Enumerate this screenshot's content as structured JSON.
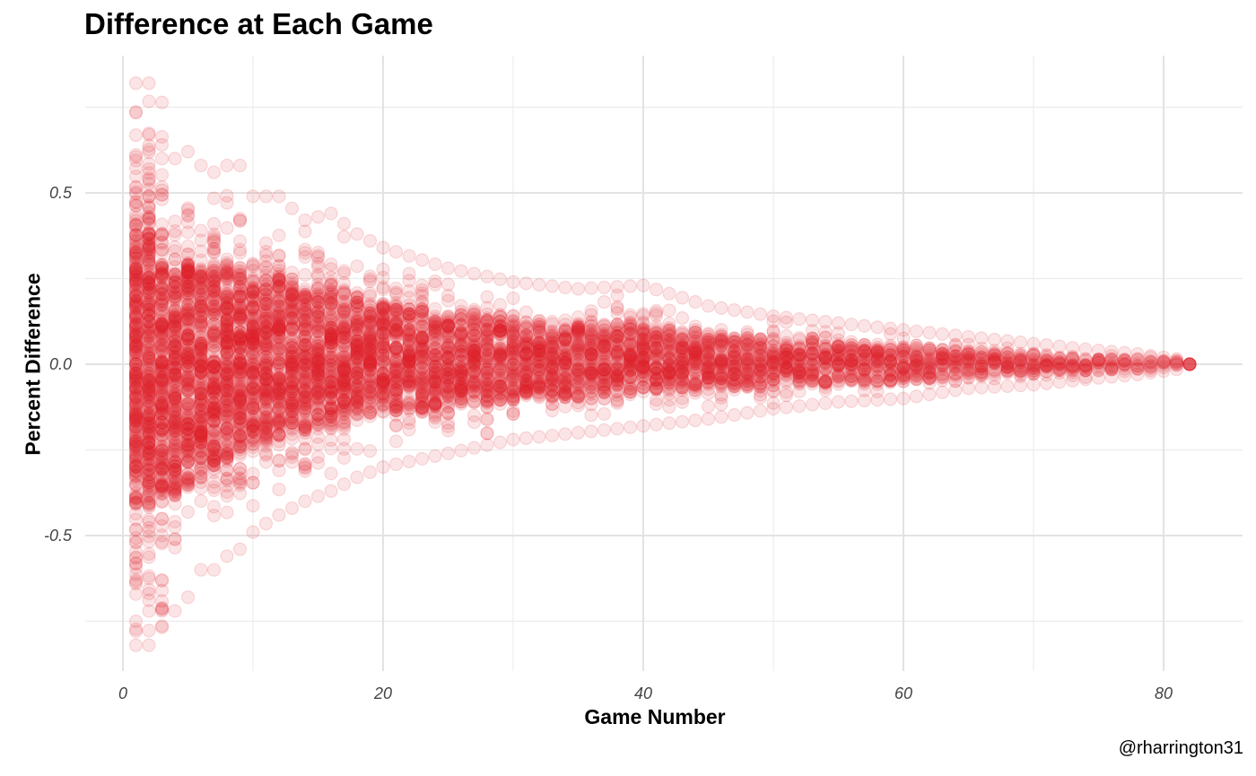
{
  "title": "Difference at Each Game",
  "caption": "@rharrington31",
  "chart_data": {
    "type": "scatter",
    "title": "Difference at Each Game",
    "xlabel": "Game Number",
    "ylabel": "Percent Difference",
    "xlim": [
      0,
      82
    ],
    "ylim": [
      -0.82,
      0.82
    ],
    "x_ticks": [
      0,
      20,
      40,
      60,
      80
    ],
    "x_tick_labels": [
      "0",
      "20",
      "40",
      "60",
      "80"
    ],
    "y_ticks": [
      -0.5,
      0.0,
      0.5
    ],
    "y_tick_labels": [
      "-0.5",
      "0.0",
      "0.5"
    ],
    "grid": true,
    "legend": "none",
    "point_color": "#E01E26",
    "point_alpha": 0.12,
    "series": [
      {
        "x": [
          1,
          2,
          3,
          4,
          5,
          6,
          7,
          8,
          9,
          10,
          12,
          14,
          16,
          18,
          20,
          25,
          30,
          35,
          40,
          45,
          50,
          55,
          60,
          65,
          70,
          75,
          78,
          80,
          81,
          82
        ],
        "y_max": [
          0.82,
          0.82,
          0.64,
          0.6,
          0.62,
          0.58,
          0.56,
          0.58,
          0.58,
          0.49,
          0.49,
          0.42,
          0.44,
          0.38,
          0.34,
          0.28,
          0.24,
          0.22,
          0.23,
          0.17,
          0.14,
          0.12,
          0.1,
          0.08,
          0.06,
          0.04,
          0.03,
          0.02,
          0.015,
          0.0
        ],
        "y_min": [
          -0.82,
          -0.82,
          -0.72,
          -0.72,
          -0.68,
          -0.6,
          -0.6,
          -0.56,
          -0.54,
          -0.49,
          -0.44,
          -0.4,
          -0.37,
          -0.33,
          -0.3,
          -0.26,
          -0.22,
          -0.2,
          -0.18,
          -0.16,
          -0.13,
          -0.11,
          -0.1,
          -0.07,
          -0.06,
          -0.04,
          -0.03,
          -0.02,
          -0.015,
          0.0
        ]
      }
    ]
  }
}
